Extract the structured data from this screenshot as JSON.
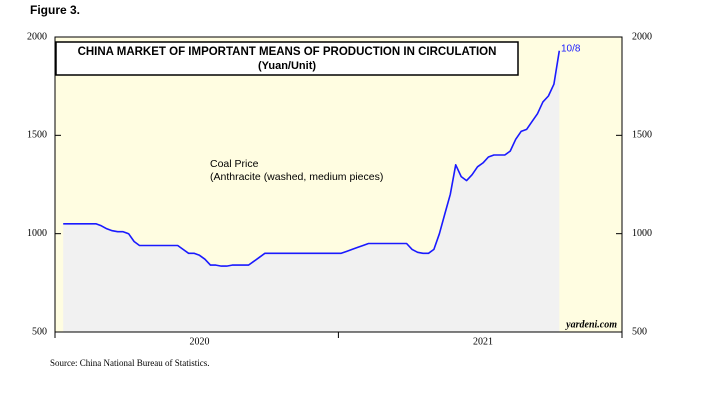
{
  "chart_data": {
    "type": "line",
    "figure_label": "Figure 3.",
    "title": "CHINA MARKET OF IMPORTANT MEANS OF PRODUCTION IN CIRCULATION",
    "subtitle": "(Yuan/Unit)",
    "annotations": [
      "Coal Price",
      "(Anthracite (washed, medium pieces)"
    ],
    "end_label": "10/8",
    "watermark": "yardeni.com",
    "source": "Source: China National Bureau of Statistics.",
    "categories": [
      null,
      null,
      null,
      null,
      null,
      null,
      null,
      null,
      null,
      null,
      null,
      null,
      null,
      null,
      null,
      null,
      null,
      null,
      null,
      null,
      null,
      null,
      null,
      null,
      null,
      null,
      "2020",
      null,
      null,
      null,
      null,
      null,
      null,
      null,
      null,
      null,
      null,
      null,
      null,
      null,
      null,
      null,
      null,
      null,
      null,
      null,
      null,
      null,
      null,
      null,
      null,
      null,
      null,
      null,
      null,
      null,
      null,
      null,
      null,
      null,
      null,
      null,
      null,
      null,
      null,
      null,
      null,
      null,
      null,
      null,
      null,
      null,
      null,
      null,
      null,
      null,
      null,
      null,
      "2021",
      null,
      null,
      null,
      null,
      null,
      null,
      null,
      null,
      null,
      null,
      null,
      null,
      null,
      null,
      null,
      null,
      null,
      null,
      null,
      null,
      null,
      null,
      null,
      null,
      null
    ],
    "values": [
      null,
      1050,
      1050,
      1050,
      1050,
      1050,
      1050,
      1050,
      1040,
      1025,
      1015,
      1010,
      1010,
      1000,
      960,
      940,
      940,
      940,
      940,
      940,
      940,
      940,
      940,
      920,
      900,
      900,
      890,
      870,
      840,
      840,
      835,
      835,
      840,
      840,
      840,
      840,
      860,
      880,
      900,
      900,
      900,
      900,
      900,
      900,
      900,
      900,
      900,
      900,
      900,
      900,
      900,
      900,
      900,
      910,
      920,
      930,
      940,
      950,
      950,
      950,
      950,
      950,
      950,
      950,
      950,
      920,
      905,
      900,
      900,
      920,
      1000,
      1100,
      1200,
      1350,
      1290,
      1270,
      1300,
      1340,
      1360,
      1390,
      1400,
      1400,
      1400,
      1420,
      1480,
      1520,
      1530,
      1570,
      1610,
      1670,
      1700,
      1760,
      1930,
      null,
      null,
      null,
      null,
      null,
      null,
      null,
      null,
      null,
      null,
      null
    ],
    "color": "#1a1aff",
    "ylim": [
      500,
      2000
    ],
    "yticks": [
      500,
      1000,
      1500,
      2000
    ],
    "y2lim": [
      500,
      2000
    ],
    "y2ticks": [
      500,
      1000,
      1500,
      2000
    ]
  }
}
